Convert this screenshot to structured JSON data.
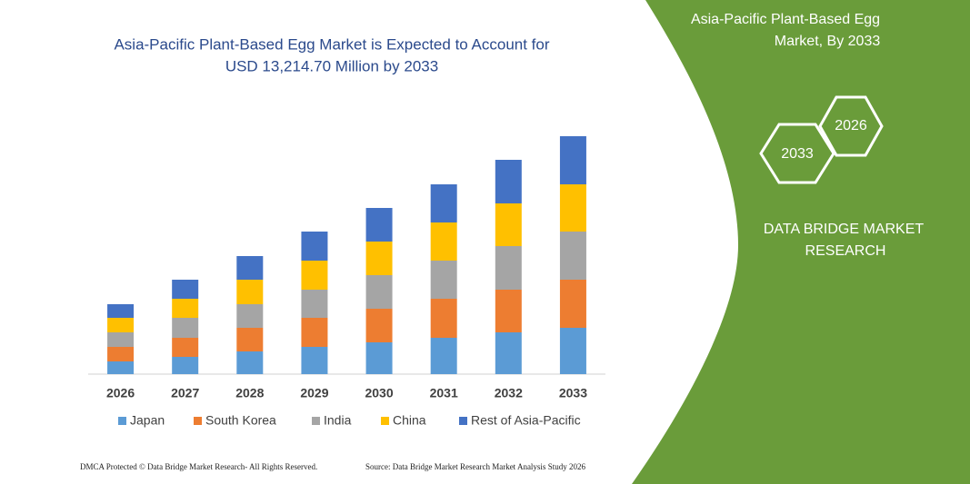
{
  "chart_data": {
    "type": "stacked_bar",
    "title": [
      "Asia-Pacific Plant-Based Egg Market is Expected to Account for",
      "USD 13,214.70 Million by 2033"
    ],
    "categories": [
      "2026",
      "2027",
      "2028",
      "2029",
      "2030",
      "2031",
      "2032",
      "2033"
    ],
    "series": [
      {
        "name": "Japan",
        "color": "#5b9bd5",
        "values": [
          14,
          19,
          25,
          30,
          35,
          40,
          46,
          51
        ]
      },
      {
        "name": "South Korea",
        "color": "#ed7d31",
        "values": [
          16,
          21,
          26,
          32,
          37,
          43,
          47,
          53
        ]
      },
      {
        "name": "India",
        "color": "#a5a5a5",
        "values": [
          16,
          22,
          26,
          31,
          37,
          42,
          48,
          53
        ]
      },
      {
        "name": "China",
        "color": "#ffc000",
        "values": [
          16,
          21,
          27,
          32,
          37,
          42,
          47,
          52
        ]
      },
      {
        "name": "Rest of Asia-Pacific",
        "color": "#4472c4",
        "values": [
          15,
          21,
          26,
          32,
          37,
          42,
          48,
          53
        ]
      }
    ],
    "ylim": [
      0,
      262
    ]
  },
  "panel": {
    "title": [
      "Asia-Pacific Plant-Based Egg",
      "Market, By 2033"
    ],
    "hex_left": "2033",
    "hex_right": "2026",
    "brand": [
      "DATA BRIDGE MARKET",
      "RESEARCH"
    ]
  },
  "footer": {
    "left": "DMCA Protected © Data Bridge Market Research-  All Rights Reserved.",
    "right": "Source: Data Bridge Market Research  Market Analysis Study 2026"
  }
}
